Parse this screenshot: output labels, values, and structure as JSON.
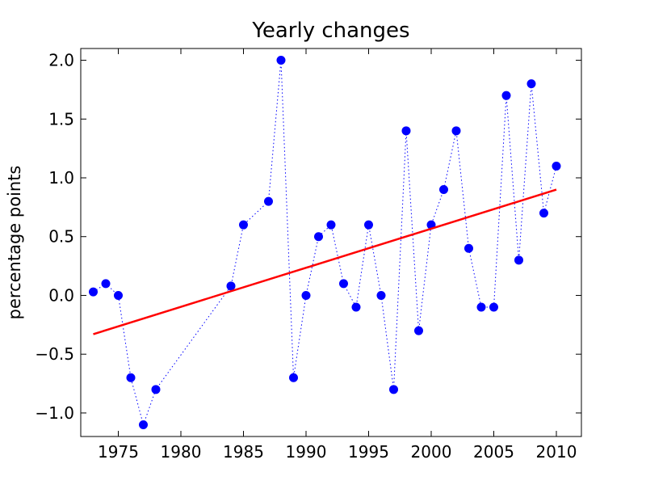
{
  "chart_data": {
    "type": "line",
    "title": "Yearly changes",
    "xlabel": "",
    "ylabel": "percentage points",
    "xlim": [
      1972,
      2012
    ],
    "ylim": [
      -1.2,
      2.1
    ],
    "x_ticks": [
      1975,
      1980,
      1985,
      1990,
      1995,
      2000,
      2005,
      2010
    ],
    "x_tick_labels": [
      "1975",
      "1980",
      "1985",
      "1990",
      "1995",
      "2000",
      "2005",
      "2010"
    ],
    "y_ticks": [
      -1.0,
      -0.5,
      0.0,
      0.5,
      1.0,
      1.5,
      2.0
    ],
    "y_tick_labels": [
      "−1.0",
      "−0.5",
      "0.0",
      "0.5",
      "1.0",
      "1.5",
      "2.0"
    ],
    "grid": false,
    "series": [
      {
        "style": "dotted line with circle markers",
        "color": "#0000ff",
        "x": [
          1973,
          1974,
          1975,
          1976,
          1977,
          1978,
          1984,
          1985,
          1987,
          1988,
          1989,
          1990,
          1991,
          1992,
          1993,
          1994,
          1995,
          1996,
          1997,
          1998,
          1999,
          2000,
          2001,
          2002,
          2003,
          2004,
          2005,
          2006,
          2007,
          2008,
          2009,
          2010
        ],
        "y": [
          0.03,
          0.1,
          0.0,
          -0.7,
          -1.1,
          -0.8,
          0.08,
          0.6,
          0.8,
          2.0,
          -0.7,
          0.0,
          0.5,
          0.6,
          0.1,
          -0.1,
          0.6,
          0.0,
          -0.8,
          1.4,
          -0.3,
          0.6,
          0.9,
          1.4,
          0.4,
          -0.1,
          -0.1,
          1.7,
          0.3,
          1.8,
          0.7,
          1.1
        ]
      },
      {
        "style": "solid trend line",
        "color": "#ff0000",
        "x": [
          1973,
          2010
        ],
        "y": [
          -0.33,
          0.9
        ]
      }
    ]
  }
}
